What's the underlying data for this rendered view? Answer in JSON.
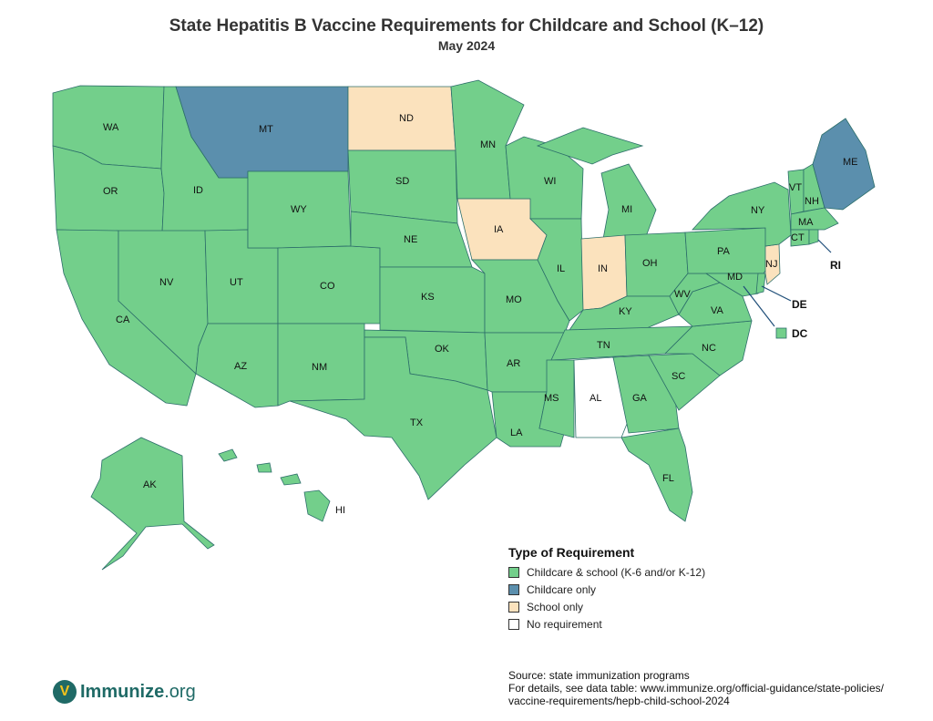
{
  "title": "State Hepatitis B Vaccine Requirements for Childcare and School (K–12)",
  "subtitle": "May 2024",
  "colors": {
    "childcare_and_school": "#73cf8b",
    "childcare_only": "#5b8fad",
    "school_only": "#fbe2bd",
    "no_requirement": "#ffffff",
    "border": "#2c6e6a"
  },
  "legend": {
    "title": "Type of Requirement",
    "items": [
      {
        "label": "Childcare & school (K-6 and/or K-12)",
        "color": "#73cf8b"
      },
      {
        "label": "Childcare only",
        "color": "#5b8fad"
      },
      {
        "label": "School only",
        "color": "#fbe2bd"
      },
      {
        "label": "No requirement",
        "color": "#ffffff"
      }
    ]
  },
  "states": {
    "WA": "childcare_and_school",
    "OR": "childcare_and_school",
    "CA": "childcare_and_school",
    "ID": "childcare_and_school",
    "NV": "childcare_and_school",
    "UT": "childcare_and_school",
    "AZ": "childcare_and_school",
    "MT": "childcare_only",
    "WY": "childcare_and_school",
    "CO": "childcare_and_school",
    "NM": "childcare_and_school",
    "ND": "school_only",
    "SD": "childcare_and_school",
    "NE": "childcare_and_school",
    "KS": "childcare_and_school",
    "OK": "childcare_and_school",
    "TX": "childcare_and_school",
    "MN": "childcare_and_school",
    "IA": "school_only",
    "MO": "childcare_and_school",
    "AR": "childcare_and_school",
    "LA": "childcare_and_school",
    "WI": "childcare_and_school",
    "IL": "childcare_and_school",
    "MI": "childcare_and_school",
    "IN": "school_only",
    "OH": "childcare_and_school",
    "KY": "childcare_and_school",
    "TN": "childcare_and_school",
    "MS": "childcare_and_school",
    "AL": "no_requirement",
    "GA": "childcare_and_school",
    "FL": "childcare_and_school",
    "SC": "childcare_and_school",
    "NC": "childcare_and_school",
    "VA": "childcare_and_school",
    "WV": "childcare_and_school",
    "PA": "childcare_and_school",
    "NY": "childcare_and_school",
    "VT": "childcare_and_school",
    "NH": "childcare_and_school",
    "ME": "childcare_only",
    "MA": "childcare_and_school",
    "CT": "childcare_and_school",
    "RI": "childcare_and_school",
    "NJ": "school_only",
    "DE": "childcare_and_school",
    "MD": "childcare_and_school",
    "DC": "childcare_and_school",
    "AK": "childcare_and_school",
    "HI": "childcare_and_school"
  },
  "labels": {
    "WA": "WA",
    "OR": "OR",
    "CA": "CA",
    "ID": "ID",
    "NV": "NV",
    "UT": "UT",
    "AZ": "AZ",
    "MT": "MT",
    "WY": "WY",
    "CO": "CO",
    "NM": "NM",
    "ND": "ND",
    "SD": "SD",
    "NE": "NE",
    "KS": "KS",
    "OK": "OK",
    "TX": "TX",
    "MN": "MN",
    "IA": "IA",
    "MO": "MO",
    "AR": "AR",
    "LA": "LA",
    "WI": "WI",
    "IL": "IL",
    "MI": "MI",
    "IN": "IN",
    "OH": "OH",
    "KY": "KY",
    "TN": "TN",
    "MS": "MS",
    "AL": "AL",
    "GA": "GA",
    "FL": "FL",
    "SC": "SC",
    "NC": "NC",
    "VA": "VA",
    "WV": "WV",
    "PA": "PA",
    "NY": "NY",
    "VT": "VT",
    "NH": "NH",
    "ME": "ME",
    "MA": "MA",
    "CT": "CT",
    "RI": "RI",
    "NJ": "NJ",
    "DE": "DE",
    "MD": "MD",
    "DC": "DC",
    "AK": "AK",
    "HI": "HI"
  },
  "source": {
    "line1": "Source: state immunization programs",
    "line2": "For details, see data table: www.immunize.org/official-guidance/state-policies/",
    "line3": "vaccine-requirements/hepb-child-school-2024"
  },
  "logo": {
    "name": "Immunize",
    "suffix": ".org",
    "mark": "V"
  }
}
